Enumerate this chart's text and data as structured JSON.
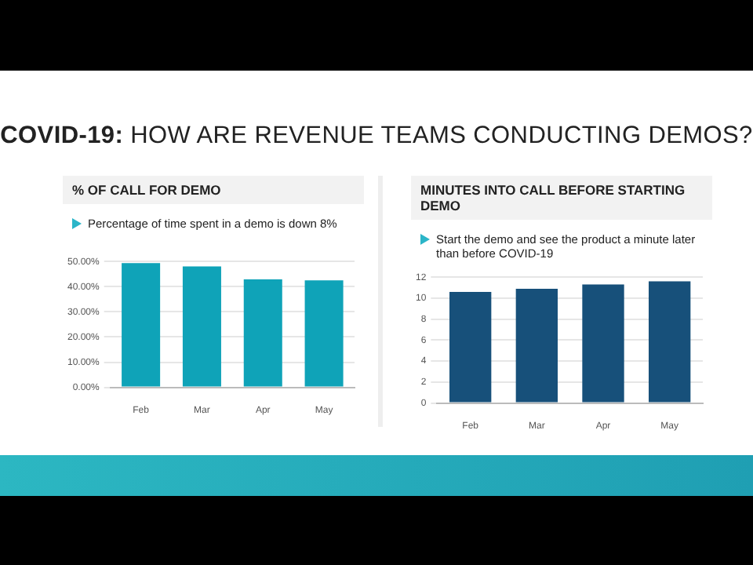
{
  "chart_data": [
    {
      "type": "other",
      "title": "COVID-19: HOW ARE REVENUE TEAMS CONDUCTING DEMOS?"
    },
    {
      "type": "bar",
      "title": "% OF CALL FOR DEMO",
      "subtitle": "Percentage of time spent in a demo is down 8%",
      "categories": [
        "Feb",
        "Mar",
        "Apr",
        "May"
      ],
      "values": [
        49.4,
        48.0,
        42.9,
        42.5
      ],
      "color": "#0fa3b8",
      "ylim": [
        0,
        50
      ],
      "yticks": [
        {
          "value": 0,
          "label": "0.00%"
        },
        {
          "value": 10,
          "label": "10.00%"
        },
        {
          "value": 20,
          "label": "20.00%"
        },
        {
          "value": 30,
          "label": "30.00%"
        },
        {
          "value": 40,
          "label": "40.00%"
        },
        {
          "value": 50,
          "label": "50.00%"
        }
      ],
      "grid": "y"
    },
    {
      "type": "bar",
      "title": "MINUTES INTO CALL BEFORE STARTING DEMO",
      "subtitle": "Start the demo and see the product a minute later than before COVID-19",
      "categories": [
        "Feb",
        "Mar",
        "Apr",
        "May"
      ],
      "values": [
        10.6,
        10.9,
        11.3,
        11.6
      ],
      "color": "#17507a",
      "ylim": [
        0,
        12
      ],
      "yticks": [
        0,
        2,
        4,
        6,
        8,
        10,
        12
      ],
      "grid": "y"
    }
  ]
}
